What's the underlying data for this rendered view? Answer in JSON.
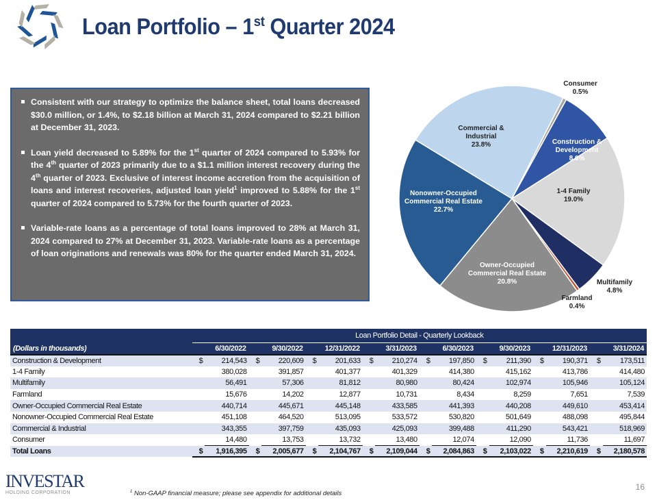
{
  "header": {
    "title_pre": "Loan Portfolio – 1",
    "title_sup": "st",
    "title_post": " Quarter 2024"
  },
  "bullets": [
    {
      "text": "Consistent with our strategy to optimize the balance sheet, total loans decreased $30.0 million, or 1.4%, to $2.18 billion at March 31, 2024 compared to $2.21 billion at December 31, 2023."
    },
    {
      "p1": "Loan yield decreased to 5.89% for the 1",
      "s1": "st",
      "p2": " quarter of 2024 compared to 5.93% for the 4",
      "s2": "th",
      "p3": " quarter of 2023 primarily due to a $1.1 million interest recovery during the 4",
      "s3": "th",
      "p4": " quarter of 2023. Exclusive of interest income accretion from the acquisition of loans and interest recoveries, adjusted loan yield",
      "s4": "1",
      "p5": " improved to 5.88% for the 1",
      "s5": "st",
      "p6": " quarter of 2024 compared to 5.73% for the fourth quarter of 2023."
    },
    {
      "text": "Variable-rate loans as a percentage of total loans improved to 28% at March 31, 2024 compared to 27% at December 31, 2023. Variable-rate loans as a percentage of loan originations and renewals was 80% for the quarter ended March 31, 2024."
    }
  ],
  "chart_data": {
    "type": "pie",
    "slices": [
      {
        "label": "Consumer",
        "value": 0.5,
        "display": "0.5%",
        "color": "#a6a6a6"
      },
      {
        "label": "Construction & Development",
        "value": 8.0,
        "display": "8.0%",
        "color": "#2f55a4"
      },
      {
        "label": "1-4 Family",
        "value": 19.0,
        "display": "19.0%",
        "color": "#d9d9d9"
      },
      {
        "label": "Multifamily",
        "value": 4.8,
        "display": "4.8%",
        "color": "#1f2f64"
      },
      {
        "label": "Farmland",
        "value": 0.4,
        "display": "0.4%",
        "color": "#c5502a"
      },
      {
        "label": "Owner-Occupied Commercial Real Estate",
        "value": 20.8,
        "display": "20.8%",
        "color": "#8c8c8c"
      },
      {
        "label": "Nonowner-Occupied Commercial Real Estate",
        "value": 22.7,
        "display": "22.7%",
        "color": "#275b92"
      },
      {
        "label": "Commercial & Industrial",
        "value": 23.8,
        "display": "23.8%",
        "color": "#bdd6ee"
      }
    ]
  },
  "table": {
    "group_header": "Loan Portfolio Detail - Quarterly Lookback",
    "units_label": "(Dollars in thousands)",
    "columns": [
      "6/30/2022",
      "9/30/2022",
      "12/31/2022",
      "3/31/2023",
      "6/30/2023",
      "9/30/2023",
      "12/31/2023",
      "3/31/2024"
    ],
    "rows": [
      {
        "label": "Construction & Development",
        "cur": "$",
        "values": [
          "214,543",
          "220,609",
          "201,633",
          "210,274",
          "197,850",
          "211,390",
          "190,371",
          "173,511"
        ]
      },
      {
        "label": "1-4 Family",
        "cur": "",
        "values": [
          "380,028",
          "391,857",
          "401,377",
          "401,329",
          "414,380",
          "415,162",
          "413,786",
          "414,480"
        ]
      },
      {
        "label": "Multifamily",
        "cur": "",
        "values": [
          "56,491",
          "57,306",
          "81,812",
          "80,980",
          "80,424",
          "102,974",
          "105,946",
          "105,124"
        ]
      },
      {
        "label": "Farmland",
        "cur": "",
        "values": [
          "15,676",
          "14,202",
          "12,877",
          "10,731",
          "8,434",
          "8,259",
          "7,651",
          "7,539"
        ]
      },
      {
        "label": "Owner-Occupied Commercial Real Estate",
        "cur": "",
        "values": [
          "440,714",
          "445,671",
          "445,148",
          "433,585",
          "441,393",
          "440,208",
          "449,610",
          "453,414"
        ]
      },
      {
        "label": "Nonowner-Occupied Commercial Real Estate",
        "cur": "",
        "values": [
          "451,108",
          "464,520",
          "513,095",
          "533,572",
          "530,820",
          "501,649",
          "488,098",
          "495,844"
        ]
      },
      {
        "label": "Commercial & Industrial",
        "cur": "",
        "values": [
          "343,355",
          "397,759",
          "435,093",
          "425,093",
          "399,488",
          "411,290",
          "543,421",
          "518,969"
        ]
      },
      {
        "label": "Consumer",
        "cur": "",
        "values": [
          "14,480",
          "13,753",
          "13,732",
          "13,480",
          "12,074",
          "12,090",
          "11,736",
          "11,697"
        ]
      },
      {
        "label": "Total Loans",
        "cur": "$",
        "values": [
          "1,916,395",
          "2,005,677",
          "2,104,767",
          "2,109,044",
          "2,084,863",
          "2,103,022",
          "2,210,619",
          "2,180,578"
        ]
      }
    ]
  },
  "footer": {
    "logo_name": "INVESTAR",
    "logo_sub": "HOLDING CORPORATION",
    "footnote_sup": "1",
    "footnote": " Non-GAAP financial measure; please see appendix for additional details",
    "page": "16"
  }
}
